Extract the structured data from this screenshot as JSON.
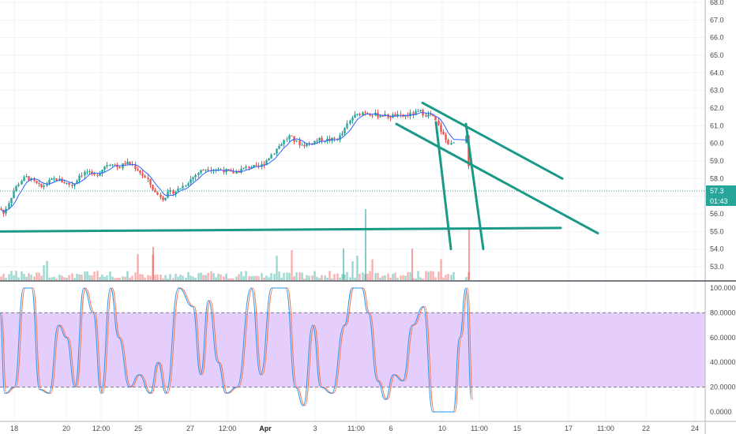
{
  "chart_data": [
    {
      "type": "candlestick",
      "panel": "price",
      "ylim": [
        52.4,
        68.0
      ],
      "y_ticks": [
        "68.0",
        "67.0",
        "66.0",
        "65.0",
        "64.0",
        "63.0",
        "62.0",
        "61.0",
        "60.0",
        "59.0",
        "58.0",
        "57.0",
        "56.0",
        "55.0",
        "54.0",
        "53.0"
      ],
      "x_ticks": [
        {
          "label": "18",
          "bold": false
        },
        {
          "label": "20",
          "bold": false
        },
        {
          "label": "12:00",
          "bold": false
        },
        {
          "label": "25",
          "bold": false
        },
        {
          "label": "27",
          "bold": false
        },
        {
          "label": "12:00",
          "bold": false
        },
        {
          "label": "Apr",
          "bold": true
        },
        {
          "label": "3",
          "bold": false
        },
        {
          "label": "11:00",
          "bold": false
        },
        {
          "label": "6",
          "bold": false
        },
        {
          "label": "10",
          "bold": false
        },
        {
          "label": "11:00",
          "bold": false
        },
        {
          "label": "15",
          "bold": false
        },
        {
          "label": "17",
          "bold": false
        },
        {
          "label": "11:00",
          "bold": false
        },
        {
          "label": "22",
          "bold": false
        },
        {
          "label": "24",
          "bold": false
        }
      ],
      "price_path": [
        [
          0,
          56.3
        ],
        [
          4,
          56.0
        ],
        [
          10,
          56.6
        ],
        [
          18,
          57.4
        ],
        [
          26,
          57.9
        ],
        [
          34,
          58.1
        ],
        [
          42,
          57.8
        ],
        [
          52,
          57.5
        ],
        [
          60,
          57.8
        ],
        [
          70,
          58.0
        ],
        [
          80,
          57.8
        ],
        [
          92,
          57.6
        ],
        [
          100,
          58.2
        ],
        [
          110,
          58.4
        ],
        [
          118,
          58.1
        ],
        [
          126,
          58.4
        ],
        [
          134,
          58.8
        ],
        [
          142,
          58.9
        ],
        [
          150,
          58.6
        ],
        [
          158,
          58.9
        ],
        [
          166,
          58.8
        ],
        [
          174,
          58.5
        ],
        [
          180,
          58.2
        ],
        [
          188,
          57.8
        ],
        [
          196,
          57.2
        ],
        [
          206,
          56.9
        ],
        [
          214,
          57.2
        ],
        [
          222,
          57.3
        ],
        [
          232,
          57.6
        ],
        [
          242,
          58.0
        ],
        [
          252,
          58.4
        ],
        [
          262,
          58.6
        ],
        [
          272,
          58.5
        ],
        [
          282,
          58.5
        ],
        [
          292,
          58.3
        ],
        [
          300,
          58.4
        ],
        [
          310,
          58.6
        ],
        [
          318,
          58.7
        ],
        [
          326,
          58.6
        ],
        [
          334,
          58.9
        ],
        [
          342,
          59.3
        ],
        [
          350,
          59.7
        ],
        [
          358,
          60.1
        ],
        [
          366,
          60.4
        ],
        [
          374,
          60.1
        ],
        [
          382,
          59.9
        ],
        [
          392,
          60.0
        ],
        [
          402,
          60.2
        ],
        [
          412,
          60.2
        ],
        [
          420,
          60.2
        ],
        [
          428,
          60.3
        ],
        [
          434,
          60.6
        ],
        [
          440,
          61.1
        ],
        [
          446,
          61.5
        ],
        [
          452,
          61.6
        ],
        [
          460,
          61.8
        ],
        [
          468,
          61.7
        ],
        [
          476,
          61.6
        ],
        [
          484,
          61.6
        ],
        [
          492,
          61.5
        ],
        [
          500,
          61.6
        ],
        [
          508,
          61.5
        ],
        [
          516,
          61.6
        ],
        [
          524,
          61.7
        ],
        [
          532,
          61.8
        ],
        [
          540,
          61.6
        ],
        [
          546,
          61.6
        ],
        [
          552,
          61.2
        ],
        [
          558,
          60.7
        ],
        [
          564,
          60.2
        ],
        [
          570,
          59.9
        ],
        [
          576,
          60.1
        ],
        [
          582,
          60.4
        ],
        [
          588,
          60.6
        ],
        [
          592,
          60.0
        ],
        [
          594,
          57.3
        ]
      ],
      "last_price_label": "57.3",
      "countdown_label": "01:43",
      "colors": {
        "up": "#26a69a",
        "down": "#ef5350",
        "ma": "#2962ff",
        "drawing": "#1a9a86",
        "last_price": "#26a69a"
      },
      "drawings": [
        {
          "name": "horizontal-support",
          "points": [
            [
              0,
              55.0
            ],
            [
              710,
              55.2
            ]
          ]
        },
        {
          "name": "upper-channel-line",
          "points": [
            [
              535,
              62.3
            ],
            [
              712,
              58.0
            ]
          ]
        },
        {
          "name": "lower-channel-line",
          "points": [
            [
              502,
              61.1
            ],
            [
              757,
              54.9
            ]
          ]
        },
        {
          "name": "wedge-left-line",
          "points": [
            [
              552,
              61.2
            ],
            [
              571,
              54.0
            ]
          ]
        },
        {
          "name": "wedge-right-line",
          "points": [
            [
              590,
              61.1
            ],
            [
              612,
              54.0
            ]
          ]
        }
      ]
    },
    {
      "type": "line",
      "panel": "stochastic-oscillator",
      "ylim": [
        -6,
        106
      ],
      "y_ticks": [
        "100.0000",
        "80.0000",
        "60.0000",
        "40.0000",
        "20.0000",
        "0.0000"
      ],
      "band": [
        20,
        80
      ],
      "series_colors": [
        "#2196f3",
        "#ff7043"
      ],
      "band_color": "#e1c6fb"
    }
  ]
}
